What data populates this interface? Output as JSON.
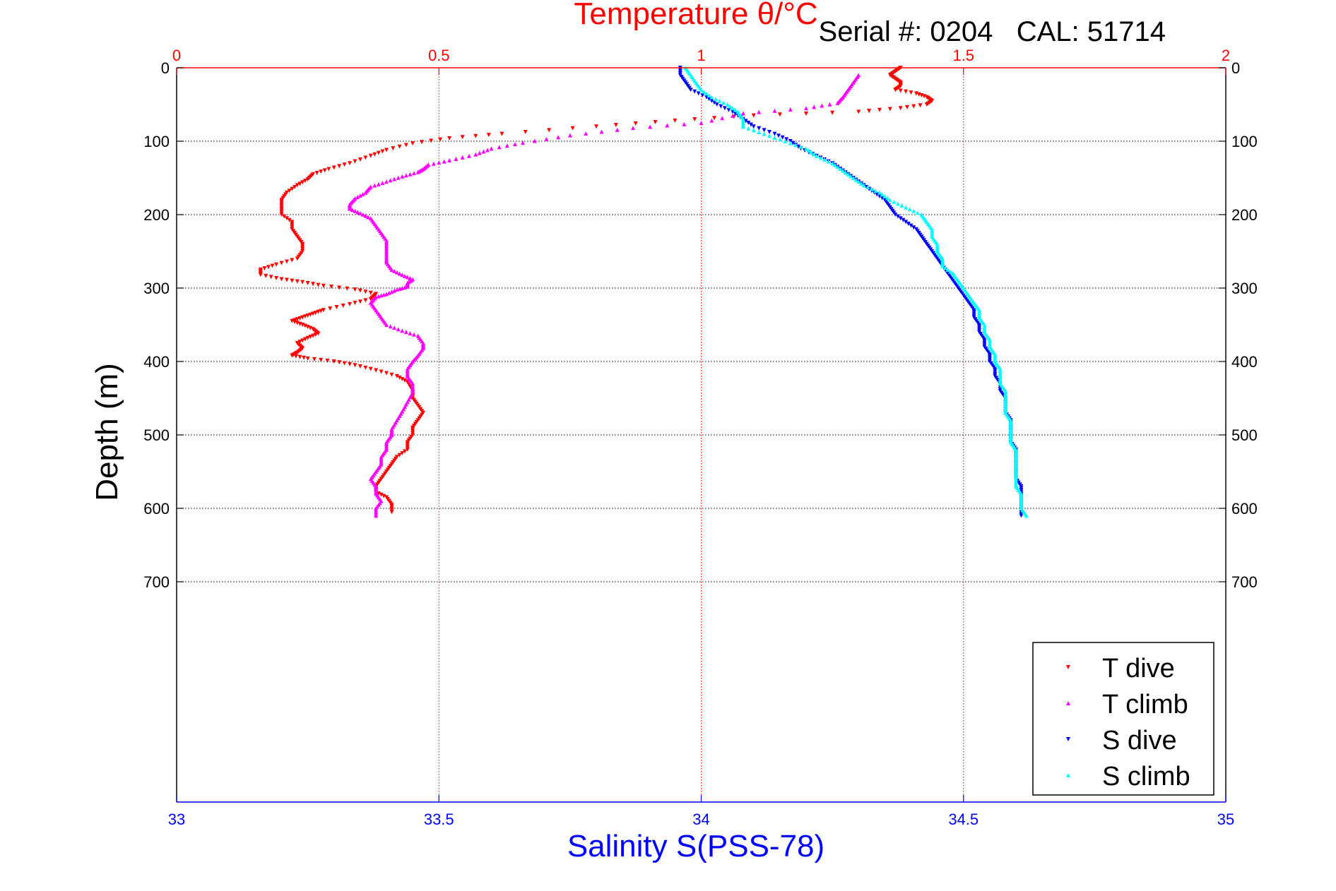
{
  "chart_data": {
    "type": "scatter",
    "title": "Temperature θ/°C",
    "annotation": "Serial #: 0204   CAL: 51714",
    "xlabel": "Salinity S(PSS-78)",
    "ylabel": "Depth (m)",
    "temperature_axis": {
      "range": [
        0,
        2
      ],
      "ticks": [
        0,
        0.5,
        1,
        1.5,
        2
      ],
      "tick_labels": [
        "0",
        "0.5",
        "1",
        "1.5",
        "2"
      ],
      "color": "#ff0000",
      "position": "top"
    },
    "salinity_axis": {
      "range": [
        33,
        35
      ],
      "ticks": [
        33,
        33.5,
        34,
        34.5,
        35
      ],
      "tick_labels": [
        "33",
        "33.5",
        "34",
        "34.5",
        "35"
      ],
      "color": "#0000ff",
      "position": "bottom"
    },
    "depth_axis": {
      "range": [
        0,
        1000
      ],
      "reversed": true,
      "ticks": [
        0,
        100,
        200,
        300,
        400,
        500,
        600,
        700
      ],
      "tick_labels": [
        "0",
        "100",
        "200",
        "300",
        "400",
        "500",
        "600",
        "700"
      ],
      "color": "#000000"
    },
    "grid": true,
    "legend_placement": "bottom-right",
    "series": [
      {
        "name": "T dive",
        "axis": "temperature",
        "color": "#ff0000",
        "marker": "triangle-down",
        "points": [
          [
            1.38,
            0
          ],
          [
            1.37,
            5
          ],
          [
            1.36,
            10
          ],
          [
            1.37,
            15
          ],
          [
            1.38,
            20
          ],
          [
            1.38,
            25
          ],
          [
            1.37,
            30
          ],
          [
            1.41,
            35
          ],
          [
            1.43,
            40
          ],
          [
            1.44,
            45
          ],
          [
            1.43,
            50
          ],
          [
            1.38,
            55
          ],
          [
            1.3,
            60
          ],
          [
            1.1,
            65
          ],
          [
            0.95,
            72
          ],
          [
            0.8,
            80
          ],
          [
            0.62,
            90
          ],
          [
            0.52,
            96
          ],
          [
            0.45,
            103
          ],
          [
            0.4,
            112
          ],
          [
            0.37,
            120
          ],
          [
            0.33,
            130
          ],
          [
            0.29,
            138
          ],
          [
            0.26,
            145
          ],
          [
            0.25,
            152
          ],
          [
            0.23,
            160
          ],
          [
            0.21,
            170
          ],
          [
            0.2,
            180
          ],
          [
            0.2,
            190
          ],
          [
            0.2,
            200
          ],
          [
            0.22,
            210
          ],
          [
            0.22,
            220
          ],
          [
            0.23,
            230
          ],
          [
            0.24,
            240
          ],
          [
            0.24,
            250
          ],
          [
            0.23,
            260
          ],
          [
            0.19,
            268
          ],
          [
            0.16,
            275
          ],
          [
            0.16,
            282
          ],
          [
            0.2,
            288
          ],
          [
            0.24,
            292
          ],
          [
            0.28,
            297
          ],
          [
            0.34,
            302
          ],
          [
            0.38,
            308
          ],
          [
            0.37,
            315
          ],
          [
            0.33,
            322
          ],
          [
            0.28,
            330
          ],
          [
            0.26,
            335
          ],
          [
            0.24,
            340
          ],
          [
            0.22,
            345
          ],
          [
            0.24,
            350
          ],
          [
            0.26,
            356
          ],
          [
            0.27,
            362
          ],
          [
            0.25,
            368
          ],
          [
            0.23,
            375
          ],
          [
            0.24,
            382
          ],
          [
            0.23,
            388
          ],
          [
            0.22,
            392
          ],
          [
            0.25,
            396
          ],
          [
            0.3,
            400
          ],
          [
            0.34,
            405
          ],
          [
            0.38,
            412
          ],
          [
            0.42,
            420
          ],
          [
            0.44,
            428
          ],
          [
            0.45,
            440
          ],
          [
            0.45,
            450
          ],
          [
            0.46,
            460
          ],
          [
            0.47,
            470
          ],
          [
            0.46,
            480
          ],
          [
            0.45,
            490
          ],
          [
            0.45,
            500
          ],
          [
            0.44,
            510
          ],
          [
            0.44,
            520
          ],
          [
            0.42,
            530
          ],
          [
            0.41,
            540
          ],
          [
            0.4,
            550
          ],
          [
            0.39,
            560
          ],
          [
            0.38,
            570
          ],
          [
            0.38,
            578
          ],
          [
            0.4,
            585
          ],
          [
            0.41,
            595
          ],
          [
            0.41,
            605
          ]
        ]
      },
      {
        "name": "T climb",
        "axis": "temperature",
        "color": "#ff00ff",
        "marker": "triangle-up",
        "points": [
          [
            1.3,
            10
          ],
          [
            1.29,
            20
          ],
          [
            1.28,
            30
          ],
          [
            1.27,
            40
          ],
          [
            1.26,
            48
          ],
          [
            1.2,
            55
          ],
          [
            1.08,
            62
          ],
          [
            1.0,
            75
          ],
          [
            0.87,
            82
          ],
          [
            0.75,
            92
          ],
          [
            0.66,
            102
          ],
          [
            0.6,
            110
          ],
          [
            0.57,
            118
          ],
          [
            0.52,
            126
          ],
          [
            0.48,
            132
          ],
          [
            0.47,
            138
          ],
          [
            0.46,
            142
          ],
          [
            0.43,
            148
          ],
          [
            0.4,
            155
          ],
          [
            0.37,
            162
          ],
          [
            0.36,
            170
          ],
          [
            0.34,
            178
          ],
          [
            0.33,
            186
          ],
          [
            0.33,
            192
          ],
          [
            0.35,
            198
          ],
          [
            0.37,
            205
          ],
          [
            0.38,
            215
          ],
          [
            0.39,
            225
          ],
          [
            0.4,
            235
          ],
          [
            0.4,
            245
          ],
          [
            0.4,
            255
          ],
          [
            0.4,
            265
          ],
          [
            0.41,
            275
          ],
          [
            0.43,
            282
          ],
          [
            0.45,
            288
          ],
          [
            0.44,
            293
          ],
          [
            0.44,
            298
          ],
          [
            0.42,
            302
          ],
          [
            0.4,
            308
          ],
          [
            0.38,
            312
          ],
          [
            0.37,
            320
          ],
          [
            0.38,
            330
          ],
          [
            0.39,
            340
          ],
          [
            0.4,
            350
          ],
          [
            0.43,
            358
          ],
          [
            0.46,
            365
          ],
          [
            0.47,
            375
          ],
          [
            0.47,
            382
          ],
          [
            0.46,
            392
          ],
          [
            0.45,
            400
          ],
          [
            0.44,
            410
          ],
          [
            0.44,
            420
          ],
          [
            0.45,
            430
          ],
          [
            0.45,
            442
          ],
          [
            0.44,
            455
          ],
          [
            0.43,
            468
          ],
          [
            0.42,
            480
          ],
          [
            0.41,
            492
          ],
          [
            0.41,
            500
          ],
          [
            0.4,
            510
          ],
          [
            0.4,
            520
          ],
          [
            0.39,
            530
          ],
          [
            0.39,
            540
          ],
          [
            0.38,
            550
          ],
          [
            0.37,
            560
          ],
          [
            0.38,
            570
          ],
          [
            0.38,
            580
          ],
          [
            0.39,
            590
          ],
          [
            0.38,
            600
          ],
          [
            0.38,
            610
          ]
        ]
      },
      {
        "name": "S dive",
        "axis": "salinity",
        "color": "#0000ff",
        "marker": "triangle-down",
        "points": [
          [
            33.96,
            0
          ],
          [
            33.96,
            10
          ],
          [
            33.97,
            20
          ],
          [
            33.98,
            30
          ],
          [
            34.01,
            40
          ],
          [
            34.03,
            50
          ],
          [
            34.06,
            60
          ],
          [
            34.08,
            70
          ],
          [
            34.1,
            80
          ],
          [
            34.14,
            90
          ],
          [
            34.17,
            100
          ],
          [
            34.19,
            110
          ],
          [
            34.22,
            120
          ],
          [
            34.25,
            130
          ],
          [
            34.27,
            140
          ],
          [
            34.29,
            150
          ],
          [
            34.31,
            160
          ],
          [
            34.33,
            170
          ],
          [
            34.35,
            180
          ],
          [
            34.36,
            190
          ],
          [
            34.37,
            200
          ],
          [
            34.39,
            210
          ],
          [
            34.41,
            220
          ],
          [
            34.42,
            230
          ],
          [
            34.43,
            240
          ],
          [
            34.44,
            250
          ],
          [
            34.45,
            260
          ],
          [
            34.46,
            270
          ],
          [
            34.47,
            280
          ],
          [
            34.48,
            290
          ],
          [
            34.49,
            300
          ],
          [
            34.5,
            310
          ],
          [
            34.51,
            320
          ],
          [
            34.52,
            330
          ],
          [
            34.52,
            340
          ],
          [
            34.53,
            350
          ],
          [
            34.53,
            360
          ],
          [
            34.54,
            370
          ],
          [
            34.54,
            380
          ],
          [
            34.55,
            390
          ],
          [
            34.55,
            400
          ],
          [
            34.56,
            410
          ],
          [
            34.56,
            420
          ],
          [
            34.57,
            430
          ],
          [
            34.57,
            440
          ],
          [
            34.58,
            450
          ],
          [
            34.58,
            460
          ],
          [
            34.58,
            470
          ],
          [
            34.59,
            480
          ],
          [
            34.59,
            490
          ],
          [
            34.59,
            500
          ],
          [
            34.59,
            510
          ],
          [
            34.6,
            520
          ],
          [
            34.6,
            530
          ],
          [
            34.6,
            540
          ],
          [
            34.6,
            550
          ],
          [
            34.6,
            560
          ],
          [
            34.61,
            570
          ],
          [
            34.61,
            580
          ],
          [
            34.61,
            590
          ],
          [
            34.61,
            600
          ],
          [
            34.61,
            610
          ]
        ]
      },
      {
        "name": "S climb",
        "axis": "salinity",
        "color": "#00ffff",
        "marker": "triangle-up",
        "points": [
          [
            33.97,
            0
          ],
          [
            33.98,
            10
          ],
          [
            33.99,
            20
          ],
          [
            34.0,
            30
          ],
          [
            34.02,
            40
          ],
          [
            34.05,
            50
          ],
          [
            34.07,
            60
          ],
          [
            34.08,
            70
          ],
          [
            34.08,
            80
          ],
          [
            34.12,
            90
          ],
          [
            34.16,
            100
          ],
          [
            34.2,
            110
          ],
          [
            34.22,
            120
          ],
          [
            34.25,
            130
          ],
          [
            34.27,
            140
          ],
          [
            34.29,
            150
          ],
          [
            34.31,
            160
          ],
          [
            34.34,
            170
          ],
          [
            34.36,
            180
          ],
          [
            34.39,
            190
          ],
          [
            34.42,
            200
          ],
          [
            34.43,
            210
          ],
          [
            34.44,
            220
          ],
          [
            34.44,
            230
          ],
          [
            34.45,
            240
          ],
          [
            34.45,
            250
          ],
          [
            34.46,
            260
          ],
          [
            34.46,
            270
          ],
          [
            34.48,
            280
          ],
          [
            34.49,
            290
          ],
          [
            34.5,
            300
          ],
          [
            34.51,
            310
          ],
          [
            34.52,
            320
          ],
          [
            34.53,
            330
          ],
          [
            34.53,
            340
          ],
          [
            34.54,
            350
          ],
          [
            34.54,
            360
          ],
          [
            34.55,
            370
          ],
          [
            34.55,
            380
          ],
          [
            34.56,
            390
          ],
          [
            34.56,
            400
          ],
          [
            34.57,
            410
          ],
          [
            34.57,
            420
          ],
          [
            34.57,
            430
          ],
          [
            34.58,
            440
          ],
          [
            34.58,
            450
          ],
          [
            34.58,
            460
          ],
          [
            34.58,
            470
          ],
          [
            34.59,
            480
          ],
          [
            34.59,
            490
          ],
          [
            34.59,
            500
          ],
          [
            34.59,
            510
          ],
          [
            34.6,
            520
          ],
          [
            34.6,
            530
          ],
          [
            34.6,
            540
          ],
          [
            34.6,
            550
          ],
          [
            34.6,
            560
          ],
          [
            34.6,
            570
          ],
          [
            34.61,
            580
          ],
          [
            34.61,
            590
          ],
          [
            34.61,
            600
          ],
          [
            34.62,
            610
          ]
        ]
      }
    ]
  }
}
